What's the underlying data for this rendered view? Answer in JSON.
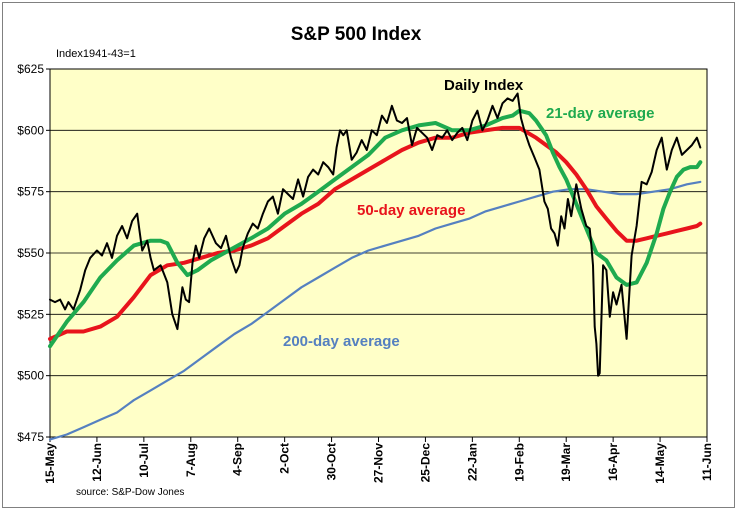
{
  "chart_data": {
    "type": "line",
    "title": "S&P 500 Index",
    "subtitle": "Index1941-43=1",
    "source": "source: S&P-Dow Jones",
    "y_tick_labels": [
      "$475",
      "$500",
      "$525",
      "$550",
      "$575",
      "$600",
      "$625"
    ],
    "y_ticks": [
      475,
      500,
      525,
      550,
      575,
      600,
      625
    ],
    "ylim": [
      475,
      625
    ],
    "x_tick_labels": [
      "15-May",
      "12-Jun",
      "10-Jul",
      "7-Aug",
      "4-Sep",
      "2-Oct",
      "30-Oct",
      "27-Nov",
      "25-Dec",
      "22-Jan",
      "19-Feb",
      "19-Mar",
      "16-Apr",
      "14-May",
      "11-Jun"
    ],
    "x_tick_days": [
      0,
      28,
      56,
      84,
      112,
      140,
      168,
      196,
      224,
      252,
      280,
      308,
      336,
      364,
      392
    ],
    "xlim_days": [
      0,
      392
    ],
    "grid": "horizontal",
    "colors": {
      "daily": "#000000",
      "ma21": "#1faa4f",
      "ma50": "#e8141c",
      "ma200": "#5580c0",
      "plot_bg": "#ffffc8"
    },
    "series": [
      {
        "name": "Daily Index",
        "days": [
          0,
          3,
          6,
          9,
          11,
          14,
          18,
          21,
          24,
          28,
          31,
          34,
          37,
          40,
          43,
          46,
          49,
          52,
          55,
          58,
          60,
          62,
          66,
          70,
          73,
          76,
          79,
          81,
          83,
          85,
          87,
          89,
          92,
          95,
          99,
          102,
          105,
          108,
          111,
          113,
          115,
          118,
          121,
          124,
          127,
          130,
          133,
          136,
          139,
          142,
          145,
          148,
          151,
          154,
          157,
          160,
          163,
          166,
          169,
          171,
          173,
          175,
          177,
          180,
          183,
          186,
          189,
          192,
          195,
          198,
          201,
          204,
          207,
          210,
          213,
          216,
          219,
          222,
          225,
          228,
          231,
          234,
          237,
          240,
          243,
          246,
          249,
          252,
          255,
          258,
          261,
          264,
          267,
          270,
          273,
          276,
          279,
          281,
          283,
          286,
          289,
          292,
          295,
          297,
          299,
          301,
          303,
          305,
          307,
          309,
          311,
          314,
          317,
          320,
          322,
          323,
          324,
          325,
          326,
          327,
          328,
          330,
          332,
          334,
          336,
          338,
          341,
          344,
          347,
          350,
          353,
          356,
          359,
          362,
          365,
          368,
          371,
          374,
          377,
          380,
          383,
          386,
          388
        ],
        "values": [
          531,
          530,
          531,
          527,
          530,
          527,
          535,
          543,
          548,
          551,
          549,
          554,
          548,
          557,
          561,
          556,
          563,
          566,
          551,
          555,
          548,
          543,
          545,
          538,
          525,
          519,
          536,
          531,
          530,
          546,
          553,
          548,
          556,
          560,
          554,
          552,
          557,
          548,
          542,
          545,
          552,
          558,
          562,
          560,
          566,
          571,
          573,
          566,
          576,
          574,
          572,
          580,
          573,
          581,
          584,
          582,
          587,
          585,
          582,
          593,
          600,
          598,
          600,
          588,
          591,
          596,
          592,
          600,
          598,
          606,
          603,
          610,
          604,
          603,
          605,
          594,
          601,
          599,
          597,
          592,
          598,
          597,
          600,
          596,
          599,
          601,
          596,
          604,
          608,
          600,
          604,
          610,
          605,
          611,
          613,
          612,
          615,
          605,
          600,
          594,
          589,
          584,
          571,
          568,
          560,
          558,
          553,
          565,
          560,
          572,
          565,
          578,
          568,
          561,
          560,
          553,
          545,
          520,
          513,
          500,
          501,
          545,
          543,
          524,
          534,
          529,
          537,
          515,
          549,
          561,
          579,
          578,
          583,
          592,
          597,
          584,
          592,
          597,
          590,
          592,
          594,
          597,
          593
        ]
      },
      {
        "name": "21-day average",
        "days": [
          0,
          10,
          20,
          30,
          40,
          50,
          60,
          66,
          70,
          76,
          82,
          88,
          96,
          104,
          112,
          120,
          130,
          140,
          150,
          160,
          170,
          180,
          190,
          200,
          210,
          220,
          230,
          240,
          250,
          260,
          270,
          276,
          280,
          286,
          290,
          296,
          300,
          304,
          308,
          314,
          320,
          326,
          332,
          338,
          344,
          350,
          356,
          362,
          366,
          370,
          374,
          378,
          382,
          386,
          388
        ],
        "values": [
          512,
          522,
          530,
          540,
          547,
          553,
          555,
          555,
          554,
          546,
          541,
          543,
          547,
          550,
          553,
          556,
          560,
          566,
          570,
          575,
          580,
          585,
          590,
          597,
          600,
          602,
          603,
          600,
          600,
          602,
          605,
          606,
          608,
          607,
          604,
          598,
          591,
          585,
          580,
          570,
          560,
          550,
          547,
          540,
          537,
          538,
          546,
          558,
          568,
          575,
          581,
          584,
          585,
          585,
          587
        ]
      },
      {
        "name": "50-day average",
        "days": [
          0,
          10,
          20,
          30,
          40,
          50,
          60,
          70,
          80,
          90,
          100,
          110,
          120,
          130,
          140,
          150,
          160,
          170,
          180,
          190,
          200,
          210,
          220,
          230,
          240,
          250,
          260,
          270,
          280,
          290,
          296,
          302,
          308,
          314,
          320,
          326,
          332,
          338,
          344,
          350,
          356,
          362,
          368,
          374,
          380,
          386,
          388
        ],
        "values": [
          515,
          518,
          518,
          520,
          524,
          532,
          541,
          545,
          546,
          548,
          550,
          551,
          553,
          556,
          561,
          566,
          570,
          576,
          580,
          584,
          588,
          592,
          595,
          597,
          597,
          599,
          600,
          601,
          601,
          597,
          594,
          591,
          587,
          582,
          576,
          569,
          564,
          559,
          555,
          555,
          556,
          557,
          558,
          559,
          560,
          561,
          562
        ]
      },
      {
        "name": "200-day average",
        "days": [
          0,
          10,
          20,
          30,
          40,
          50,
          60,
          70,
          80,
          90,
          100,
          110,
          120,
          130,
          140,
          150,
          160,
          170,
          180,
          190,
          200,
          210,
          220,
          230,
          240,
          250,
          260,
          270,
          280,
          290,
          300,
          310,
          320,
          330,
          340,
          350,
          360,
          370,
          380,
          388
        ],
        "values": [
          474,
          476,
          479,
          482,
          485,
          490,
          494,
          498,
          502,
          507,
          512,
          517,
          521,
          526,
          531,
          536,
          540,
          544,
          548,
          551,
          553,
          555,
          557,
          560,
          562,
          564,
          567,
          569,
          571,
          573,
          575,
          576,
          576,
          575,
          574,
          574,
          575,
          576,
          578,
          579
        ]
      }
    ],
    "annotations": [
      {
        "text": "Daily Index",
        "series": "Daily Index"
      },
      {
        "text": "21-day average",
        "series": "21-day average"
      },
      {
        "text": "50-day average",
        "series": "50-day average"
      },
      {
        "text": "200-day average",
        "series": "200-day average"
      }
    ]
  }
}
